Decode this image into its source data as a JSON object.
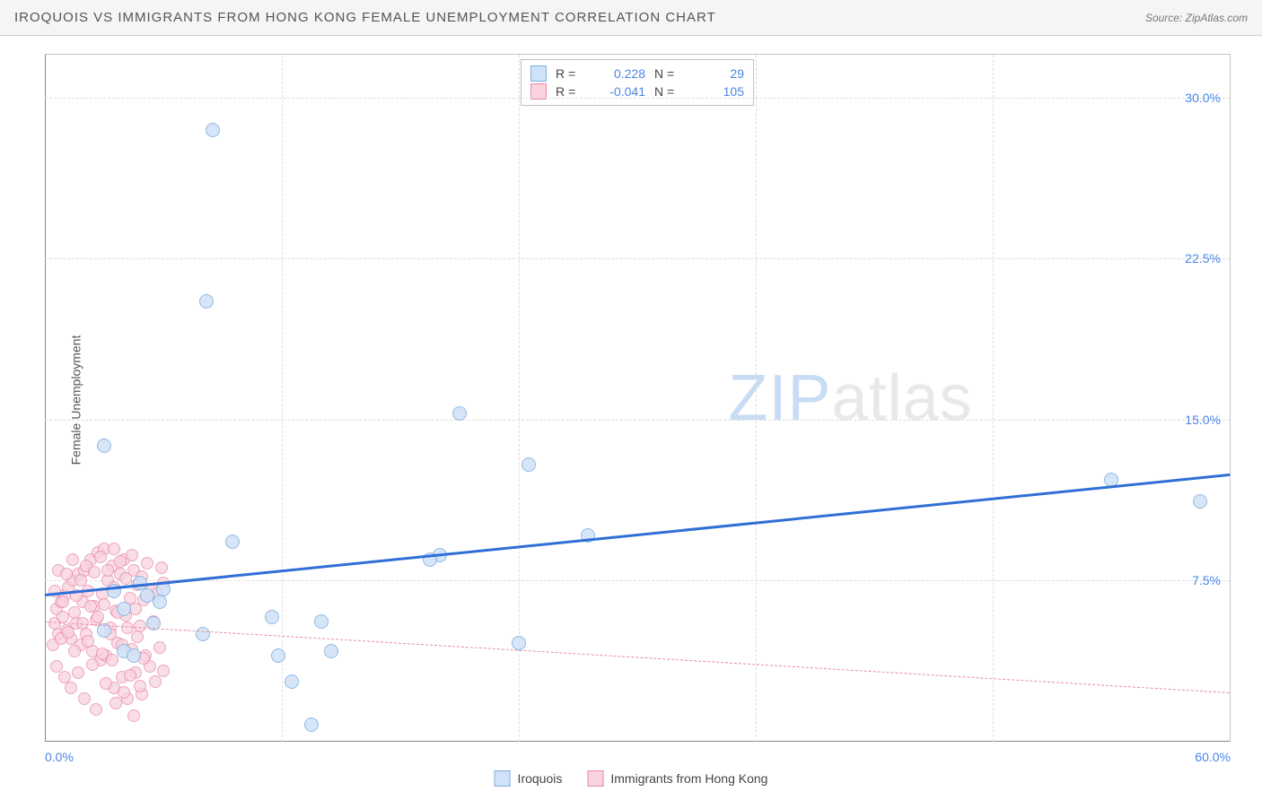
{
  "title": "IROQUOIS VS IMMIGRANTS FROM HONG KONG FEMALE UNEMPLOYMENT CORRELATION CHART",
  "source": "Source: ZipAtlas.com",
  "watermark": {
    "part1": "ZIP",
    "part2": "atlas"
  },
  "ylabel": "Female Unemployment",
  "chart": {
    "type": "scatter",
    "xlim": [
      0,
      60
    ],
    "ylim": [
      0,
      32
    ],
    "xticks": [
      {
        "value": 0,
        "label": "0.0%"
      },
      {
        "value": 60,
        "label": "60.0%"
      }
    ],
    "yticks": [
      {
        "value": 7.5,
        "label": "7.5%"
      },
      {
        "value": 15.0,
        "label": "15.0%"
      },
      {
        "value": 22.5,
        "label": "22.5%"
      },
      {
        "value": 30.0,
        "label": "30.0%"
      }
    ],
    "x_gridlines": [
      12,
      24,
      36,
      48
    ],
    "background_color": "#ffffff",
    "grid_color": "#dddddd",
    "axis_color": "#888888",
    "series": [
      {
        "name": "Iroquois",
        "fill_color": "#cfe2f7",
        "stroke_color": "#7eaee0",
        "marker_radius": 8,
        "marker_opacity": 0.85,
        "correlation_R": "0.228",
        "correlation_N": "29",
        "trend": {
          "y_at_x0": 6.9,
          "y_at_x60": 12.5,
          "color": "#2f6fd6",
          "width": 3,
          "dashed": false
        },
        "points": [
          [
            8.5,
            28.5
          ],
          [
            8.2,
            20.5
          ],
          [
            3.0,
            13.8
          ],
          [
            21.0,
            15.3
          ],
          [
            24.5,
            12.9
          ],
          [
            54.0,
            12.2
          ],
          [
            58.5,
            11.2
          ],
          [
            27.5,
            9.6
          ],
          [
            20.0,
            8.7
          ],
          [
            19.5,
            8.5
          ],
          [
            9.5,
            9.3
          ],
          [
            3.5,
            7.0
          ],
          [
            5.2,
            6.8
          ],
          [
            4.8,
            7.4
          ],
          [
            6.0,
            7.1
          ],
          [
            3.0,
            5.2
          ],
          [
            4.0,
            4.2
          ],
          [
            4.5,
            4.0
          ],
          [
            11.5,
            5.8
          ],
          [
            14.0,
            5.6
          ],
          [
            14.5,
            4.2
          ],
          [
            11.8,
            4.0
          ],
          [
            12.5,
            2.8
          ],
          [
            13.5,
            0.8
          ],
          [
            24.0,
            4.6
          ],
          [
            8.0,
            5.0
          ],
          [
            4.0,
            6.2
          ],
          [
            5.5,
            5.5
          ],
          [
            5.8,
            6.5
          ]
        ]
      },
      {
        "name": "Immigrants from Hong Kong",
        "fill_color": "#f9d3de",
        "stroke_color": "#e88aa8",
        "marker_radius": 7,
        "marker_opacity": 0.75,
        "correlation_R": "-0.041",
        "correlation_N": "105",
        "trend": {
          "y_at_x0": 5.6,
          "y_at_x60": 2.3,
          "color": "#e88aa8",
          "width": 1,
          "dashed": true
        },
        "points": [
          [
            0.5,
            5.5
          ],
          [
            0.6,
            6.2
          ],
          [
            0.7,
            5.0
          ],
          [
            0.8,
            6.5
          ],
          [
            0.9,
            5.8
          ],
          [
            1.0,
            6.8
          ],
          [
            1.1,
            5.2
          ],
          [
            1.2,
            7.2
          ],
          [
            1.3,
            4.8
          ],
          [
            1.4,
            7.5
          ],
          [
            1.5,
            6.0
          ],
          [
            1.6,
            5.5
          ],
          [
            1.7,
            7.8
          ],
          [
            1.8,
            4.5
          ],
          [
            1.9,
            6.5
          ],
          [
            2.0,
            8.0
          ],
          [
            2.1,
            5.0
          ],
          [
            2.2,
            7.0
          ],
          [
            2.3,
            8.5
          ],
          [
            2.4,
            4.2
          ],
          [
            2.5,
            6.3
          ],
          [
            2.6,
            5.7
          ],
          [
            2.7,
            8.8
          ],
          [
            2.8,
            3.8
          ],
          [
            2.9,
            6.9
          ],
          [
            3.0,
            9.0
          ],
          [
            3.1,
            4.0
          ],
          [
            3.2,
            7.5
          ],
          [
            3.3,
            5.3
          ],
          [
            3.4,
            8.2
          ],
          [
            3.5,
            2.5
          ],
          [
            3.5,
            9.0
          ],
          [
            3.6,
            6.1
          ],
          [
            3.7,
            4.6
          ],
          [
            3.8,
            7.8
          ],
          [
            3.9,
            3.0
          ],
          [
            4.0,
            8.5
          ],
          [
            4.1,
            5.9
          ],
          [
            4.2,
            2.0
          ],
          [
            4.3,
            6.7
          ],
          [
            4.4,
            4.3
          ],
          [
            4.5,
            8.0
          ],
          [
            4.6,
            3.2
          ],
          [
            4.7,
            7.3
          ],
          [
            4.8,
            5.4
          ],
          [
            4.9,
            2.2
          ],
          [
            5.0,
            6.6
          ],
          [
            5.1,
            4.0
          ],
          [
            5.2,
            8.3
          ],
          [
            5.3,
            3.5
          ],
          [
            5.4,
            7.1
          ],
          [
            5.5,
            5.6
          ],
          [
            5.6,
            2.8
          ],
          [
            5.7,
            6.9
          ],
          [
            5.8,
            4.4
          ],
          [
            5.9,
            8.1
          ],
          [
            6.0,
            3.3
          ],
          [
            6.0,
            7.4
          ],
          [
            0.4,
            4.5
          ],
          [
            0.5,
            7.0
          ],
          [
            0.6,
            3.5
          ],
          [
            0.7,
            8.0
          ],
          [
            0.8,
            4.8
          ],
          [
            0.9,
            6.5
          ],
          [
            1.0,
            3.0
          ],
          [
            1.1,
            7.8
          ],
          [
            1.2,
            5.1
          ],
          [
            1.3,
            2.5
          ],
          [
            1.4,
            8.5
          ],
          [
            1.5,
            4.2
          ],
          [
            1.6,
            6.8
          ],
          [
            1.7,
            3.2
          ],
          [
            1.8,
            7.5
          ],
          [
            1.9,
            5.5
          ],
          [
            2.0,
            2.0
          ],
          [
            2.1,
            8.2
          ],
          [
            2.2,
            4.7
          ],
          [
            2.3,
            6.3
          ],
          [
            2.4,
            3.6
          ],
          [
            2.5,
            7.9
          ],
          [
            2.6,
            1.5
          ],
          [
            2.7,
            5.8
          ],
          [
            2.8,
            8.6
          ],
          [
            2.9,
            4.1
          ],
          [
            3.0,
            6.4
          ],
          [
            3.1,
            2.7
          ],
          [
            3.2,
            8.0
          ],
          [
            3.3,
            5.0
          ],
          [
            3.4,
            3.8
          ],
          [
            3.5,
            7.2
          ],
          [
            3.6,
            1.8
          ],
          [
            3.7,
            6.0
          ],
          [
            3.8,
            8.4
          ],
          [
            3.9,
            4.5
          ],
          [
            4.0,
            2.3
          ],
          [
            4.1,
            7.6
          ],
          [
            4.2,
            5.3
          ],
          [
            4.3,
            3.1
          ],
          [
            4.4,
            8.7
          ],
          [
            4.5,
            1.2
          ],
          [
            4.6,
            6.2
          ],
          [
            4.7,
            4.9
          ],
          [
            4.8,
            2.6
          ],
          [
            4.9,
            7.7
          ],
          [
            5.0,
            3.9
          ]
        ]
      }
    ]
  },
  "corr_legend_labels": {
    "R": "R =",
    "N": "N ="
  },
  "title_fontsize": 15,
  "label_fontsize": 14
}
